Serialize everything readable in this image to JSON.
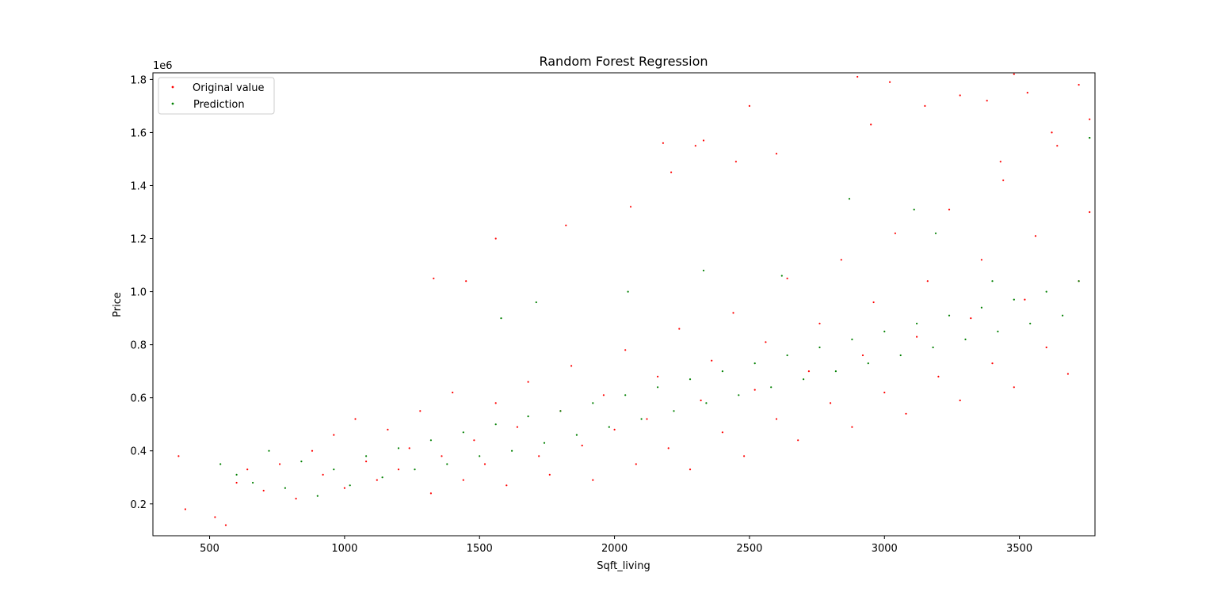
{
  "chart_data": {
    "type": "scatter",
    "title": "Random Forest Regression",
    "xlabel": "Sqft_living",
    "ylabel": "Price",
    "y_offset_text": "1e6",
    "xlim": [
      290,
      3780
    ],
    "ylim": [
      0.08,
      1.825
    ],
    "x_ticks": [
      500,
      1000,
      1500,
      2000,
      2500,
      3000,
      3500
    ],
    "x_tick_labels": [
      "500",
      "1000",
      "1500",
      "2000",
      "2500",
      "3000",
      "3500"
    ],
    "y_ticks": [
      0.2,
      0.4,
      0.6,
      0.8,
      1.0,
      1.2,
      1.4,
      1.6,
      1.8
    ],
    "y_tick_labels": [
      "0.2",
      "0.4",
      "0.6",
      "0.8",
      "1.0",
      "1.2",
      "1.4",
      "1.6",
      "1.8"
    ],
    "grid": false,
    "legend_position": "top-left",
    "series": [
      {
        "name": "Original value",
        "color": "#ff0000",
        "x": [
          385,
          410,
          520,
          560,
          600,
          640,
          700,
          760,
          820,
          880,
          920,
          960,
          1000,
          1040,
          1080,
          1120,
          1160,
          1200,
          1240,
          1280,
          1320,
          1360,
          1400,
          1440,
          1480,
          1520,
          1560,
          1600,
          1640,
          1680,
          1720,
          1760,
          1800,
          1840,
          1880,
          1920,
          1960,
          2000,
          2040,
          2080,
          2120,
          2160,
          2200,
          2240,
          2280,
          2320,
          2360,
          2400,
          2440,
          2480,
          2520,
          2560,
          2600,
          2640,
          2680,
          2720,
          2760,
          2800,
          2840,
          2880,
          2920,
          2960,
          3000,
          3040,
          3080,
          3120,
          3160,
          3200,
          3240,
          3280,
          3320,
          3360,
          3400,
          3440,
          3480,
          3520,
          3560,
          3600,
          3640,
          3680,
          3720,
          3760,
          1560,
          1330,
          1450,
          1820,
          2210,
          2300,
          2330,
          2500,
          2600,
          2900,
          3020,
          3280,
          3480,
          3720,
          3760,
          2950,
          3150,
          3380,
          3530,
          3620,
          2450,
          2180,
          2060,
          3430
        ],
        "y": [
          0.38,
          0.18,
          0.15,
          0.12,
          0.28,
          0.33,
          0.25,
          0.35,
          0.22,
          0.4,
          0.31,
          0.46,
          0.26,
          0.52,
          0.36,
          0.29,
          0.48,
          0.33,
          0.41,
          0.55,
          0.24,
          0.38,
          0.62,
          0.29,
          0.44,
          0.35,
          0.58,
          0.27,
          0.49,
          0.66,
          0.38,
          0.31,
          0.55,
          0.72,
          0.42,
          0.29,
          0.61,
          0.48,
          0.78,
          0.35,
          0.52,
          0.68,
          0.41,
          0.86,
          0.33,
          0.59,
          0.74,
          0.47,
          0.92,
          0.38,
          0.63,
          0.81,
          0.52,
          1.05,
          0.44,
          0.7,
          0.88,
          0.58,
          1.12,
          0.49,
          0.76,
          0.96,
          0.62,
          1.22,
          0.54,
          0.83,
          1.04,
          0.68,
          1.31,
          0.59,
          0.9,
          1.12,
          0.73,
          1.42,
          0.64,
          0.97,
          1.21,
          0.79,
          1.55,
          0.69,
          1.04,
          1.3,
          1.2,
          1.05,
          1.04,
          1.25,
          1.45,
          1.55,
          1.57,
          1.7,
          1.52,
          1.81,
          1.79,
          1.74,
          1.82,
          1.78,
          1.65,
          1.63,
          1.7,
          1.72,
          1.75,
          1.6,
          1.49,
          1.56,
          1.32,
          1.49
        ]
      },
      {
        "name": "Prediction",
        "color": "#008000",
        "x": [
          540,
          600,
          660,
          720,
          780,
          840,
          900,
          960,
          1020,
          1080,
          1140,
          1200,
          1260,
          1320,
          1380,
          1440,
          1500,
          1560,
          1620,
          1680,
          1740,
          1800,
          1860,
          1920,
          1980,
          2040,
          2100,
          2160,
          2220,
          2280,
          2340,
          2400,
          2460,
          2520,
          2580,
          2640,
          2700,
          2760,
          2820,
          2880,
          2940,
          3000,
          3060,
          3120,
          3180,
          3240,
          3300,
          3360,
          3420,
          3480,
          3540,
          3600,
          3660,
          3720,
          3760,
          1710,
          1580,
          2050,
          2620,
          3110,
          3190,
          3760,
          3400,
          2870,
          2330
        ],
        "y": [
          0.35,
          0.31,
          0.28,
          0.4,
          0.26,
          0.36,
          0.23,
          0.33,
          0.27,
          0.38,
          0.3,
          0.41,
          0.33,
          0.44,
          0.35,
          0.47,
          0.38,
          0.5,
          0.4,
          0.53,
          0.43,
          0.55,
          0.46,
          0.58,
          0.49,
          0.61,
          0.52,
          0.64,
          0.55,
          0.67,
          0.58,
          0.7,
          0.61,
          0.73,
          0.64,
          0.76,
          0.67,
          0.79,
          0.7,
          0.82,
          0.73,
          0.85,
          0.76,
          0.88,
          0.79,
          0.91,
          0.82,
          0.94,
          0.85,
          0.97,
          0.88,
          1.0,
          0.91,
          1.04,
          1.58,
          0.96,
          0.9,
          1.0,
          1.06,
          1.31,
          1.22,
          1.58,
          1.04,
          1.35,
          1.08
        ]
      }
    ]
  }
}
